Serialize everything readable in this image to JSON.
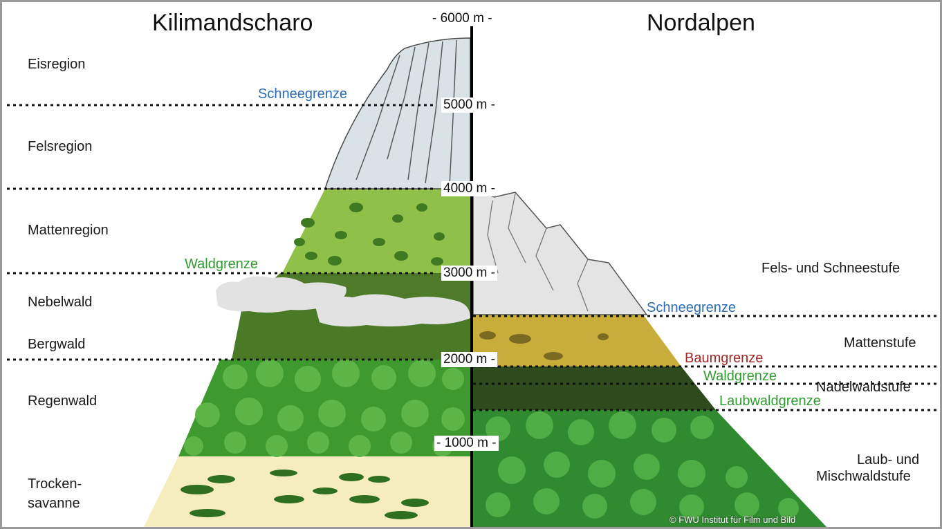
{
  "titles": {
    "left": "Kilimandscharo",
    "right": "Nordalpen"
  },
  "altitudes": [
    "- 6000 m -",
    "5000 m -",
    "4000 m -",
    "3000 m -",
    "2000 m -",
    "- 1000 m -"
  ],
  "left_zones": [
    "Eisregion",
    "Felsregion",
    "Mattenregion",
    "Nebelwald",
    "Bergwald",
    "Regenwald",
    "Trocken-",
    "savanne"
  ],
  "left_lines": {
    "snow": "Schneegrenze",
    "forest": "Waldgrenze"
  },
  "right_zones": {
    "rock": "Fels- und Schneestufe",
    "meadow": "Mattenstufe",
    "conifer": "Nadelwaldstufe",
    "mixed_1": "Laub- und",
    "mixed_2": "Mischwaldstufe"
  },
  "right_lines": {
    "snow": "Schneegrenze",
    "tree": "Baumgrenze",
    "forest": "Waldgrenze",
    "deciduous": "Laubwaldgrenze"
  },
  "copyright": "© FWU Institut für Film und Bild",
  "colors": {
    "ice": "#d9e2e6",
    "rock_right": "#e4e4e4",
    "meadow_left": "#8fc04a",
    "cloud_forest": "#4e7a2a",
    "mountain_forest": "#4a7a25",
    "rainforest": "#3e9a2e",
    "savanna": "#f6edbf",
    "meadow_right": "#c8ad3a",
    "conifer": "#2f4a1c",
    "mixed_forest": "#2f8a30",
    "snow_blue": "#2b6cb5",
    "forest_green": "#2e9d2e",
    "tree_red": "#a32626"
  }
}
